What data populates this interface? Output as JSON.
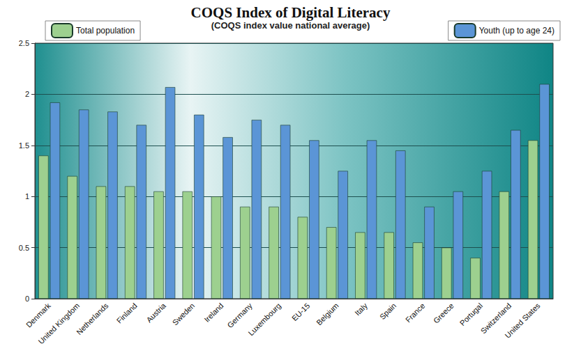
{
  "chart_data": {
    "type": "bar",
    "title": "COQS Index of Digital Literacy",
    "subtitle": "(COQS index value national average)",
    "categories": [
      "Denmark",
      "United Kingdom",
      "Netherlands",
      "Finland",
      "Austria",
      "Sweden",
      "Ireland",
      "Germany",
      "Luxembourg",
      "EU-15",
      "Belgium",
      "Italy",
      "Spain",
      "France",
      "Greece",
      "Portugal",
      "Switzerland",
      "United States"
    ],
    "series": [
      {
        "name": "Total population",
        "color": "#9dd08f",
        "values": [
          1.4,
          1.2,
          1.1,
          1.1,
          1.05,
          1.05,
          1.0,
          0.9,
          0.9,
          0.8,
          0.7,
          0.65,
          0.65,
          0.55,
          0.5,
          0.4,
          1.05,
          1.55
        ]
      },
      {
        "name": "Youth (up to age 24)",
        "color": "#5b95d6",
        "values": [
          1.92,
          1.85,
          1.83,
          1.7,
          2.07,
          1.8,
          1.58,
          1.75,
          1.7,
          1.55,
          1.25,
          1.55,
          1.45,
          0.9,
          1.05,
          1.25,
          1.65,
          2.1
        ]
      }
    ],
    "ylim": [
      0,
      2.5
    ],
    "yticks": [
      0,
      0.5,
      1,
      1.5,
      2,
      2.5
    ],
    "grid": true,
    "legend": "top"
  }
}
